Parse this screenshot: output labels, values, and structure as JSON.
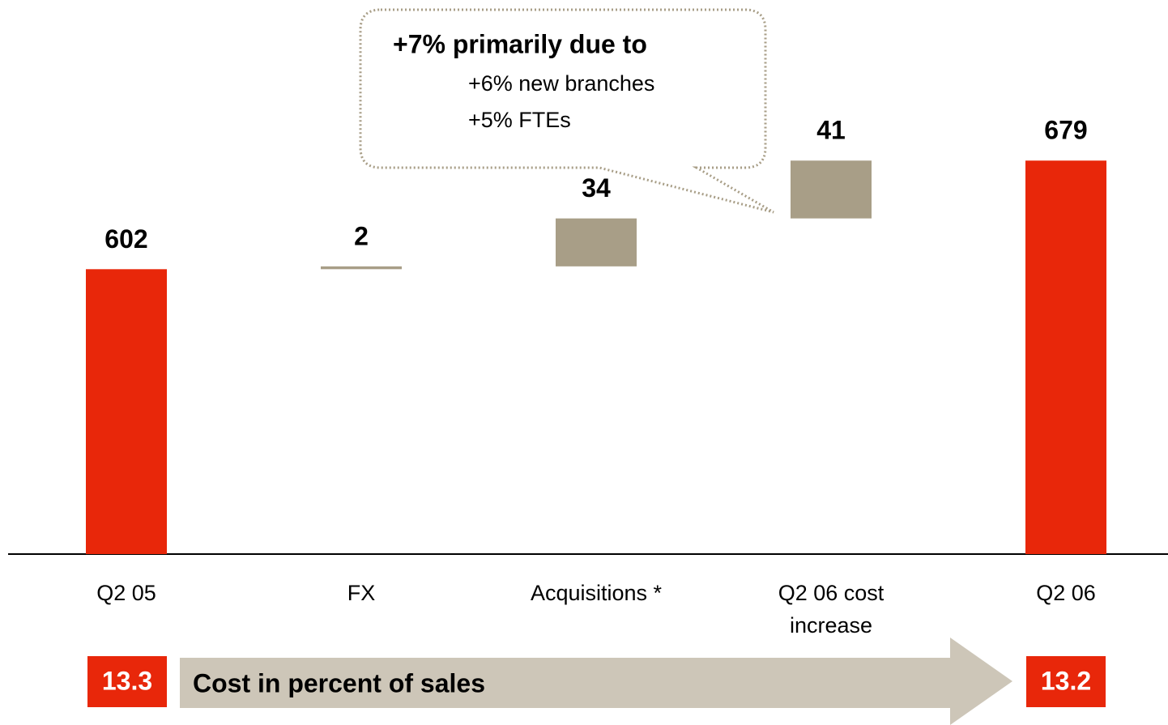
{
  "chart_data": {
    "type": "waterfall",
    "categories": [
      "Q2 05",
      "FX",
      "Acquisitions *",
      "Q2 06 cost increase",
      "Q2 06"
    ],
    "values": [
      602,
      2,
      34,
      41,
      679
    ],
    "totals": [
      true,
      false,
      false,
      false,
      true
    ],
    "total_color": "#e8270a",
    "step_color": "#a89e87",
    "ylim": [
      400,
      790
    ],
    "annotation": {
      "title": "+7% primarily due to",
      "lines": [
        "+6% new branches",
        "+5% FTEs"
      ]
    },
    "footer": {
      "left": 13.3,
      "label": "Cost in percent of sales",
      "right": 13.2
    }
  }
}
